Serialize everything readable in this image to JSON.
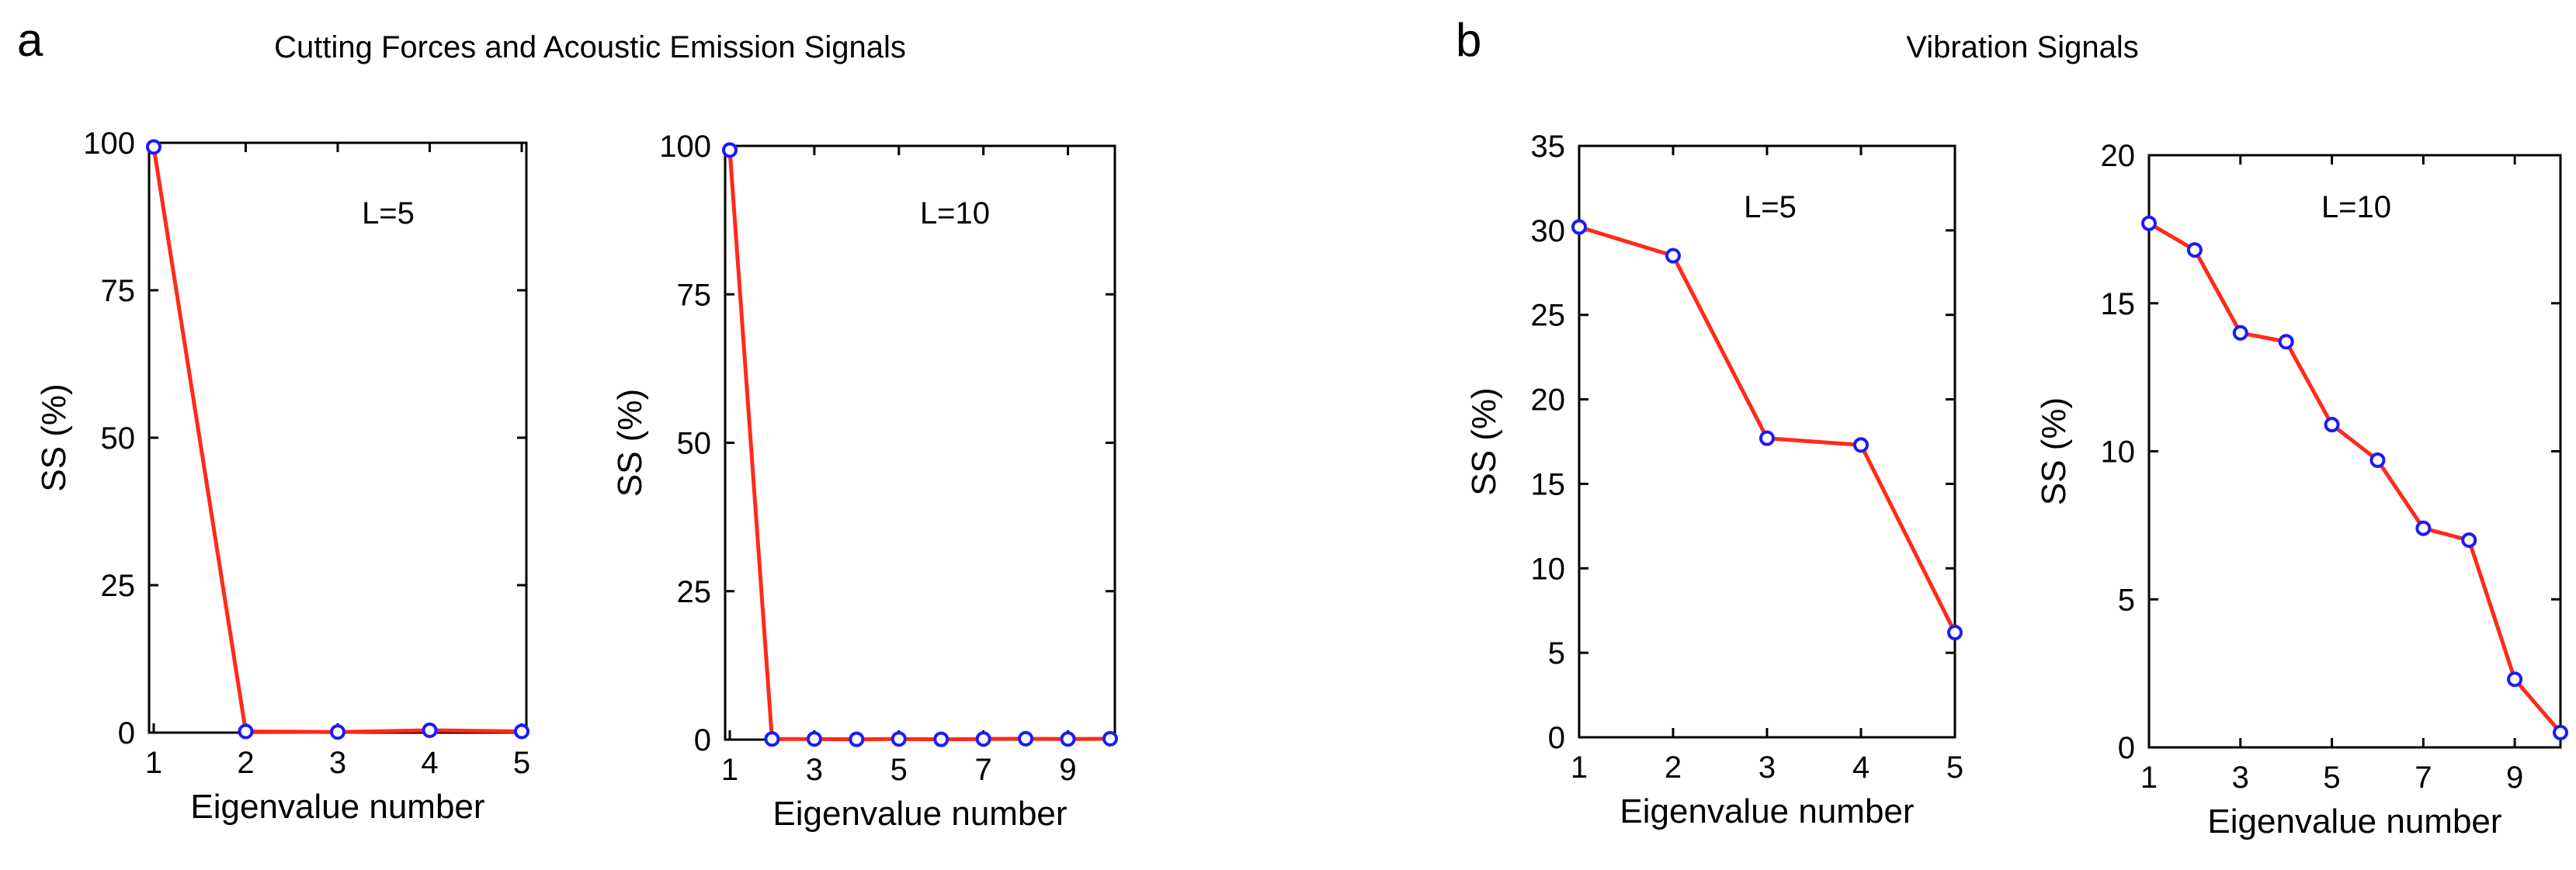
{
  "figure": {
    "panel_a_letter": "a",
    "panel_a_title": "Cutting Forces and Acoustic Emission Signals",
    "panel_b_letter": "b",
    "panel_b_title": "Vibration Signals"
  },
  "colors": {
    "line": "#ff2a1a",
    "marker_edge": "#1a1aff",
    "marker_fill": "#ffffff",
    "axes": "#000000"
  },
  "chart_data": [
    {
      "type": "line",
      "panel": "a",
      "annotation": "L=5",
      "xlabel": "Eigenvalue number",
      "ylabel": "SS (%)",
      "xlim": [
        1,
        5
      ],
      "ylim": [
        0,
        100
      ],
      "xticks": [
        1,
        2,
        3,
        4,
        5
      ],
      "yticks": [
        0,
        25,
        50,
        75,
        100
      ],
      "x": [
        1,
        2,
        3,
        4,
        5
      ],
      "y": [
        99.3,
        0.2,
        0.1,
        0.4,
        0.2
      ]
    },
    {
      "type": "line",
      "panel": "a",
      "annotation": "L=10",
      "xlabel": "Eigenvalue number",
      "ylabel": "SS (%)",
      "xlim": [
        1,
        10
      ],
      "ylim": [
        0,
        100
      ],
      "xticks": [
        1,
        3,
        5,
        7,
        9
      ],
      "yticks": [
        0,
        25,
        50,
        75,
        100
      ],
      "x": [
        1,
        2,
        3,
        4,
        5,
        6,
        7,
        8,
        9,
        10
      ],
      "y": [
        99.3,
        0.1,
        0.1,
        0.05,
        0.1,
        0.05,
        0.1,
        0.15,
        0.1,
        0.15
      ]
    },
    {
      "type": "line",
      "panel": "b",
      "annotation": "L=5",
      "xlabel": "Eigenvalue number",
      "ylabel": "SS (%)",
      "xlim": [
        1,
        5
      ],
      "ylim": [
        0,
        35
      ],
      "xticks": [
        1,
        2,
        3,
        4,
        5
      ],
      "yticks": [
        0,
        5,
        10,
        15,
        20,
        25,
        30,
        35
      ],
      "x": [
        1,
        2,
        3,
        4,
        5
      ],
      "y": [
        30.2,
        28.5,
        17.7,
        17.3,
        6.2
      ]
    },
    {
      "type": "line",
      "panel": "b",
      "annotation": "L=10",
      "xlabel": "Eigenvalue number",
      "ylabel": "SS (%)",
      "xlim": [
        1,
        10
      ],
      "ylim": [
        0,
        20
      ],
      "xticks": [
        1,
        3,
        5,
        7,
        9
      ],
      "yticks": [
        0,
        5,
        10,
        15,
        20
      ],
      "x": [
        1,
        2,
        3,
        4,
        5,
        6,
        7,
        8,
        9,
        10
      ],
      "y": [
        17.7,
        16.8,
        14.0,
        13.7,
        10.9,
        9.7,
        7.4,
        7.0,
        2.3,
        0.5
      ]
    }
  ]
}
